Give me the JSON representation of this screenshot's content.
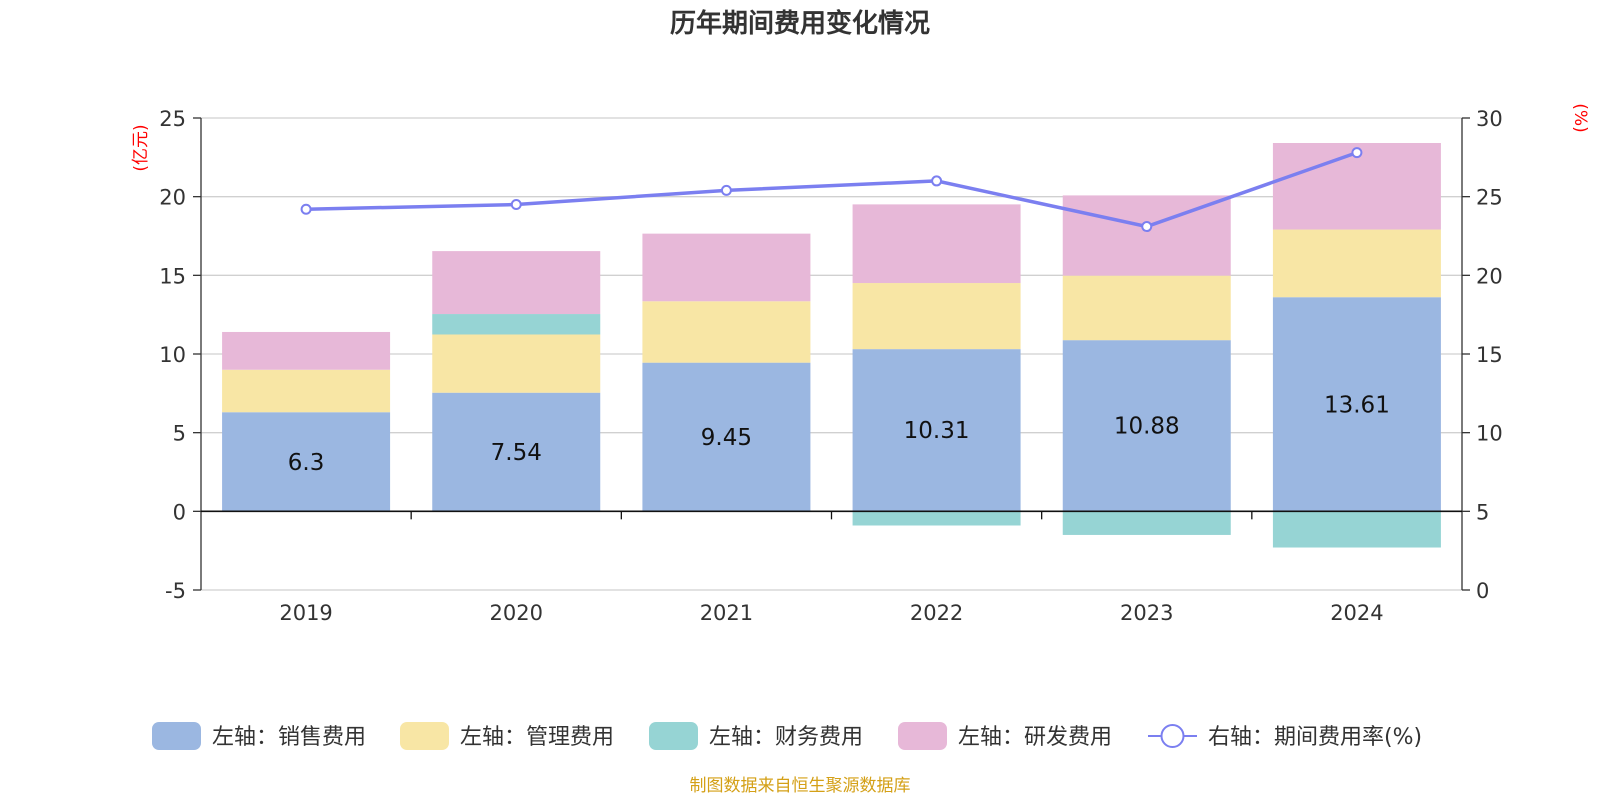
{
  "chart_data": {
    "type": "bar",
    "title": "历年期间费用变化情况",
    "categories": [
      "2019",
      "2020",
      "2021",
      "2022",
      "2023",
      "2024"
    ],
    "left_axis": {
      "unit_label": "(亿元)",
      "ylim": [
        -5,
        25
      ],
      "ticks": [
        "-5",
        "0",
        "5",
        "10",
        "15",
        "20",
        "25"
      ]
    },
    "right_axis": {
      "unit_label": "(%)",
      "ylim": [
        0,
        30
      ],
      "ticks": [
        "0",
        "5",
        "10",
        "15",
        "20",
        "25",
        "30"
      ]
    },
    "series": [
      {
        "name": "左轴：销售费用",
        "kind": "stacked-bar",
        "axis": "left",
        "color": "#9bb7e1",
        "values": [
          6.3,
          7.54,
          9.45,
          10.31,
          10.88,
          13.61
        ],
        "data_labels": [
          "6.3",
          "7.54",
          "9.45",
          "10.31",
          "10.88",
          "13.61"
        ]
      },
      {
        "name": "左轴：管理费用",
        "kind": "stacked-bar",
        "axis": "left",
        "color": "#f8e6a5",
        "values": [
          2.7,
          3.7,
          3.9,
          4.2,
          4.1,
          4.3
        ]
      },
      {
        "name": "左轴：财务费用",
        "kind": "stacked-bar",
        "axis": "left",
        "color": "#96d4d4",
        "values": [
          0.0,
          1.3,
          0.0,
          -0.9,
          -1.5,
          -2.3
        ]
      },
      {
        "name": "左轴：研发费用",
        "kind": "stacked-bar",
        "axis": "left",
        "color": "#e7b8d8",
        "values": [
          2.4,
          4.0,
          4.3,
          5.0,
          5.1,
          5.5
        ]
      },
      {
        "name": "右轴：期间费用率(%)",
        "kind": "line",
        "axis": "right",
        "color": "#7b7ff0",
        "values": [
          24.2,
          24.5,
          25.4,
          26.0,
          23.1,
          27.8
        ]
      }
    ],
    "source": "制图数据来自恒生聚源数据库"
  }
}
